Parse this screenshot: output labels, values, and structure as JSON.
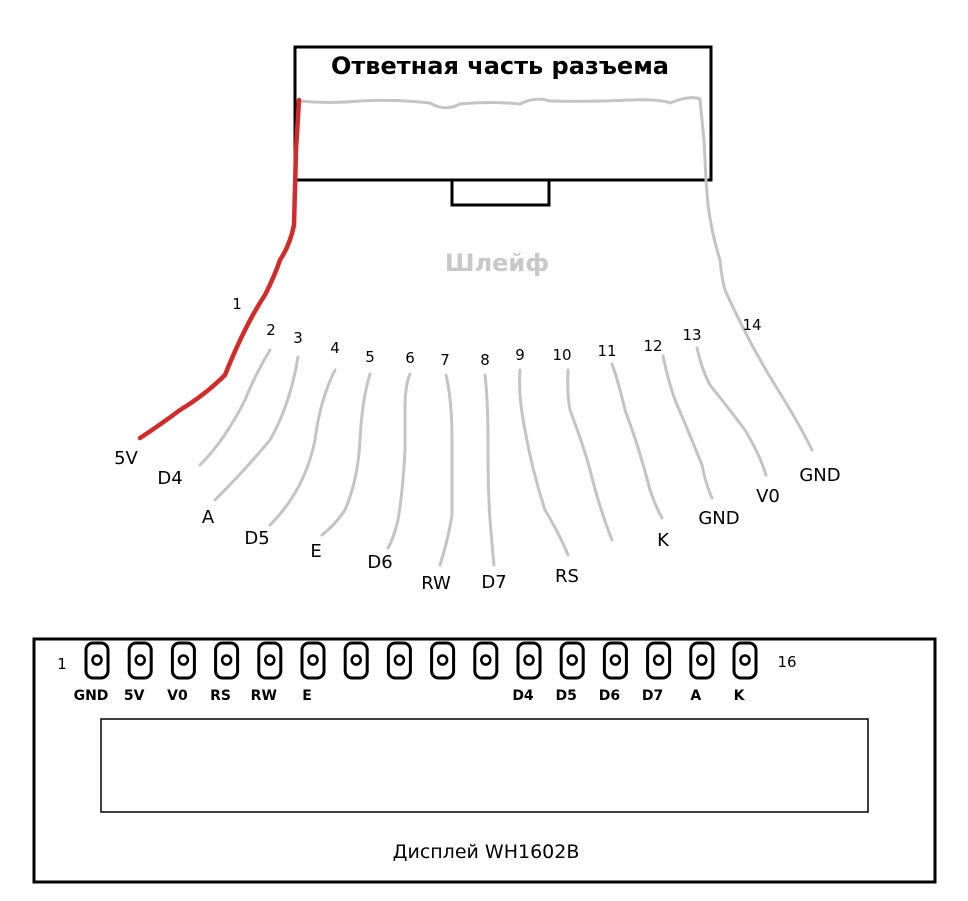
{
  "connector": {
    "title": "Ответная часть разъема"
  },
  "cable": {
    "label": "Шлейф",
    "wires": [
      {
        "num": "1",
        "signal": "5V"
      },
      {
        "num": "2",
        "signal": "D4"
      },
      {
        "num": "3",
        "signal": "A"
      },
      {
        "num": "4",
        "signal": "D5"
      },
      {
        "num": "5",
        "signal": "E"
      },
      {
        "num": "6",
        "signal": "D6"
      },
      {
        "num": "7",
        "signal": "RW"
      },
      {
        "num": "8",
        "signal": "D7"
      },
      {
        "num": "9",
        "signal": "RS"
      },
      {
        "num": "10",
        "signal": ""
      },
      {
        "num": "11",
        "signal": "K"
      },
      {
        "num": "12",
        "signal": "GND"
      },
      {
        "num": "13",
        "signal": "V0"
      },
      {
        "num": "14",
        "signal": "GND"
      }
    ]
  },
  "display": {
    "caption": "Дисплей WH1602B",
    "first_pin": "1",
    "last_pin": "16",
    "pins": [
      "GND",
      "5V",
      "V0",
      "RS",
      "RW",
      "E",
      "",
      "",
      "",
      "",
      "D4",
      "D5",
      "D6",
      "D7",
      "A",
      "K"
    ]
  },
  "colors": {
    "red_wire": "#d42a2a",
    "gray_wire": "#c4c4c4"
  }
}
